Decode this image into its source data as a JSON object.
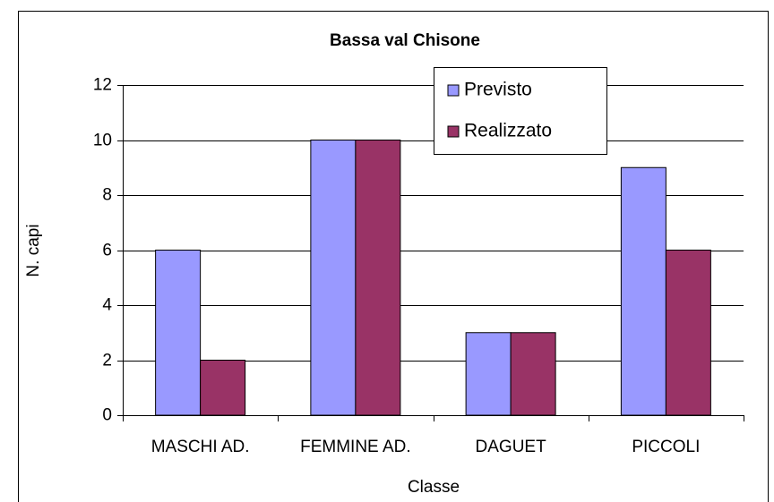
{
  "chart_data": {
    "type": "bar",
    "title": "Bassa val Chisone",
    "x_label": "Classe",
    "y_label": "N. capi",
    "categories": [
      "MASCHI AD.",
      "FEMMINE AD.",
      "DAGUET",
      "PICCOLI"
    ],
    "series": [
      {
        "name": "Previsto",
        "color": "#9999ff",
        "values": [
          6,
          10,
          3,
          9
        ]
      },
      {
        "name": "Realizzato",
        "color": "#993366",
        "values": [
          2,
          10,
          3,
          6
        ]
      }
    ],
    "ylim": [
      0,
      12
    ],
    "yticks": [
      0,
      2,
      4,
      6,
      8,
      10,
      12
    ],
    "grid": true,
    "legend": "top-right"
  }
}
